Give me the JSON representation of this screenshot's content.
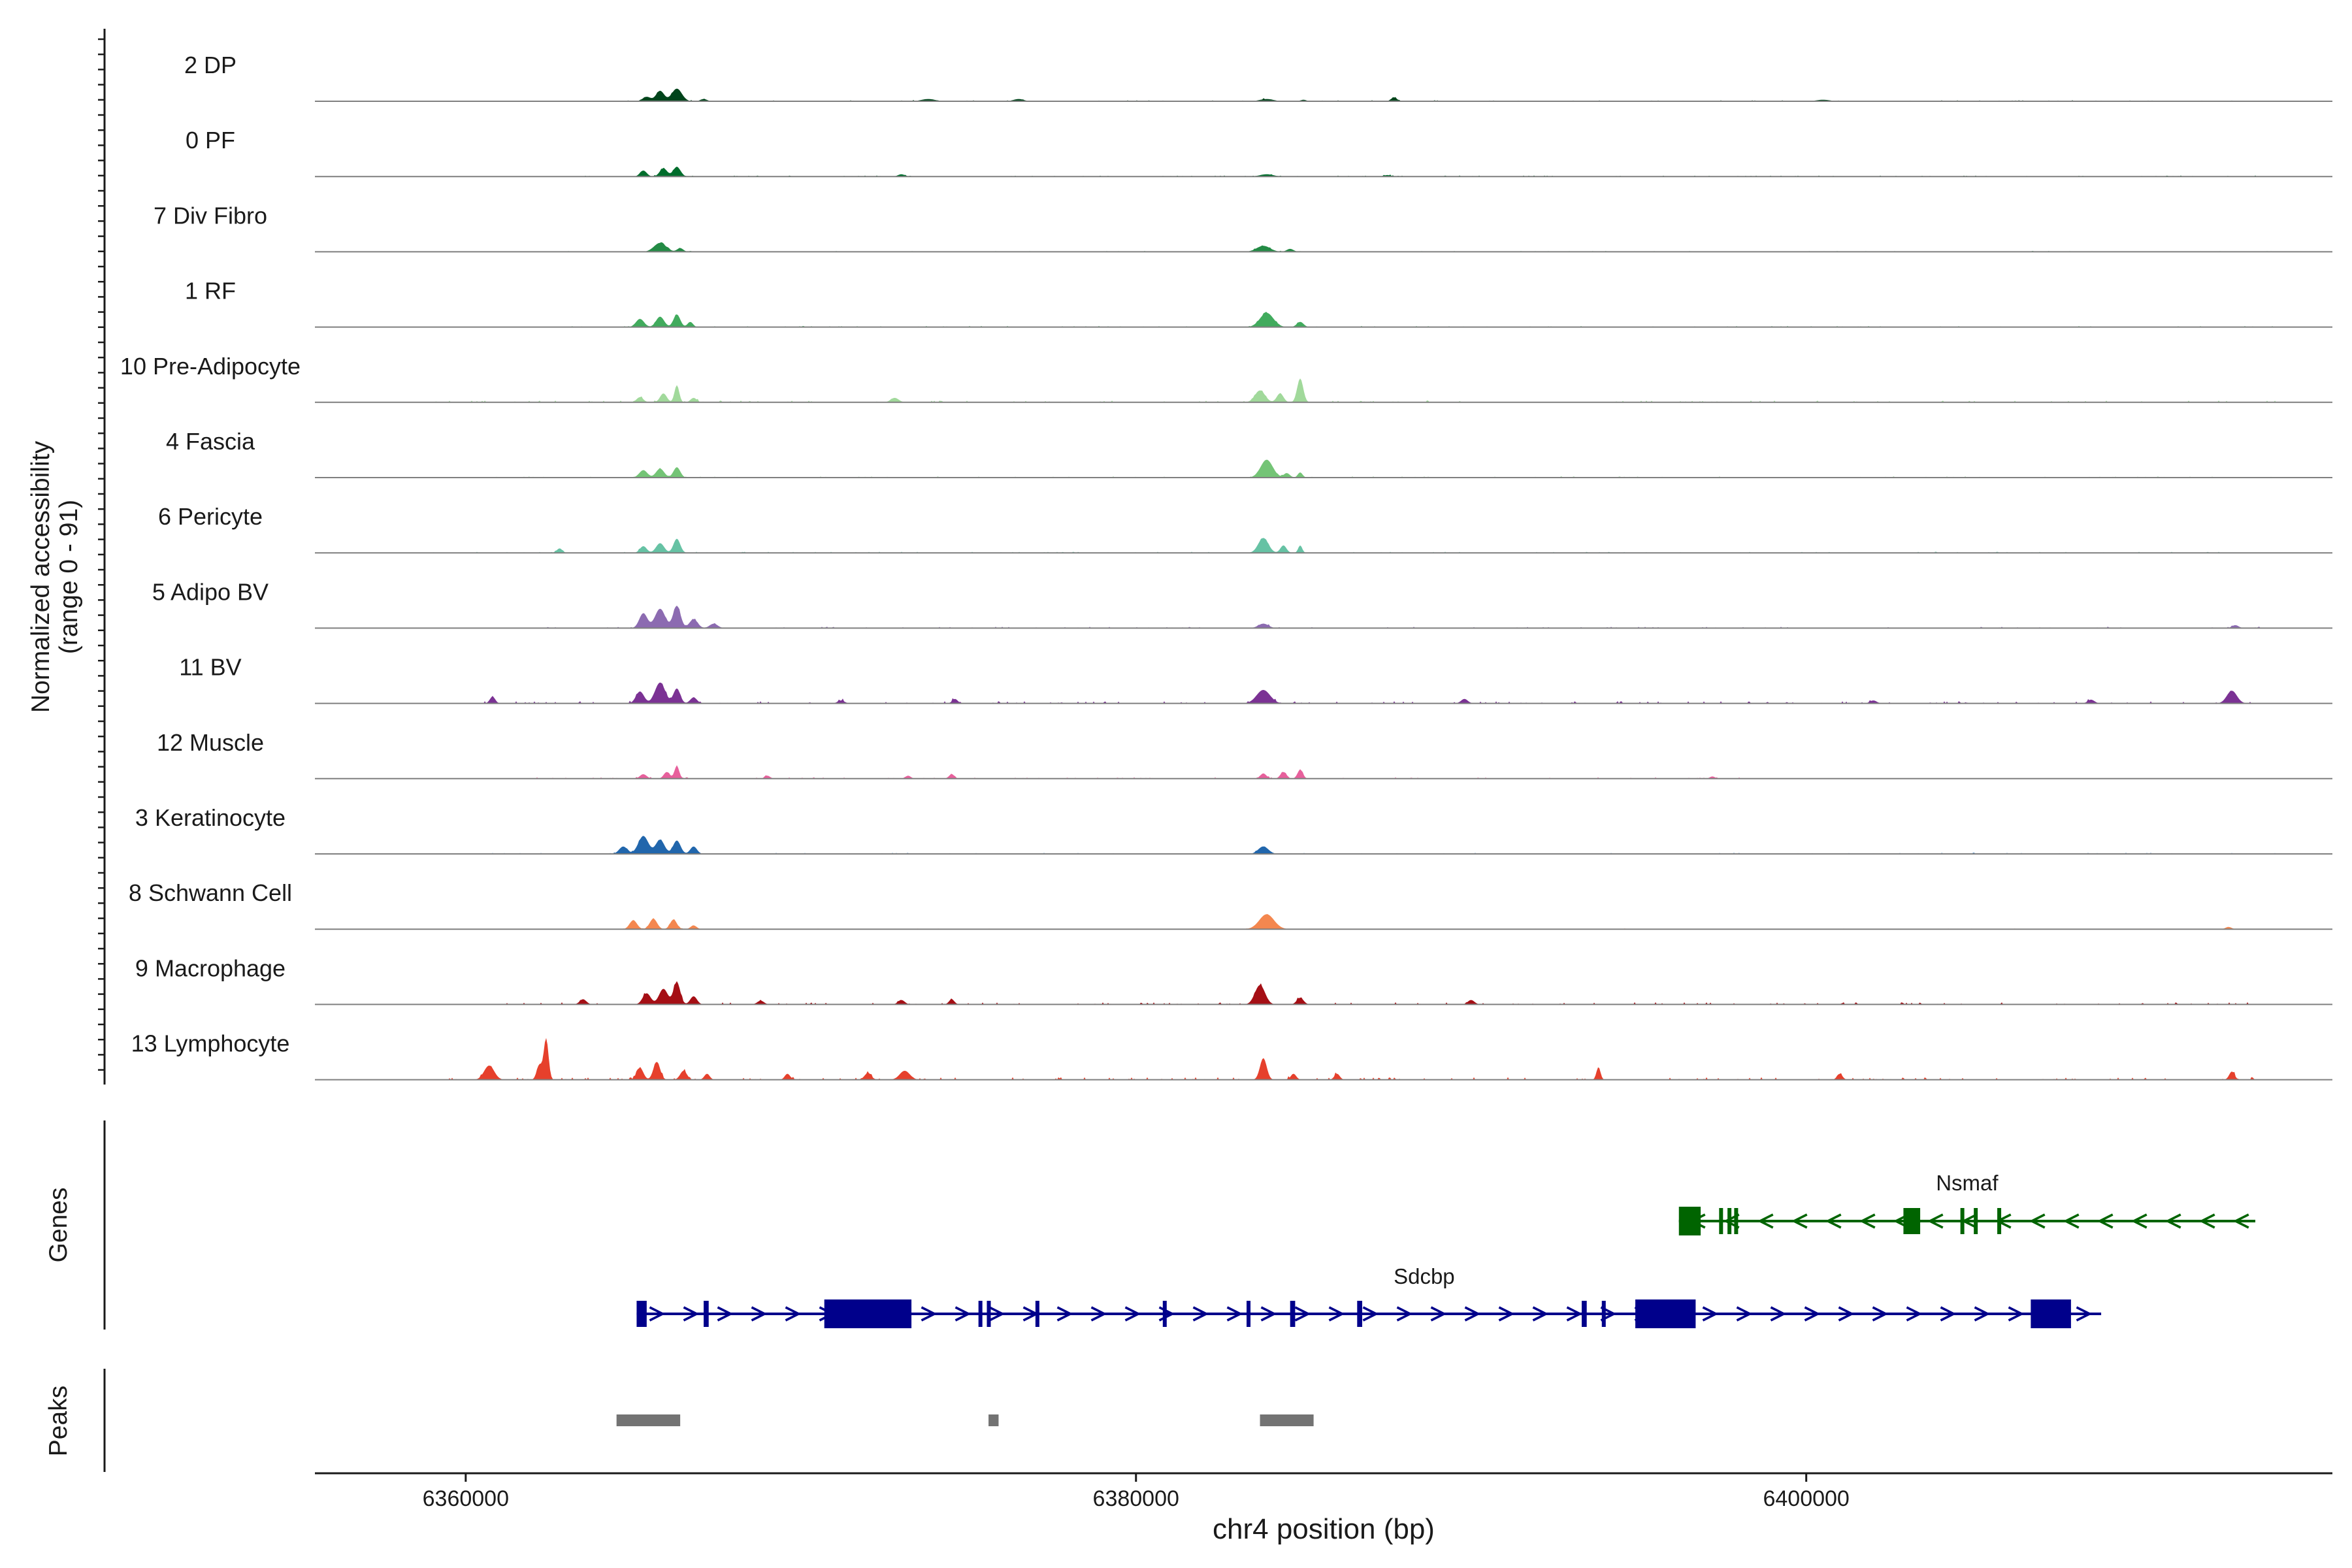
{
  "chart_data": {
    "type": "area",
    "chromosome": "chr4",
    "xlabel": "chr4 position (bp)",
    "xlim": [
      6355500,
      6415700
    ],
    "xticks": [
      6360000,
      6380000,
      6400000
    ],
    "ylabel_line1": "Normalized accessibility",
    "ylabel_line2": "(range 0 - 91)",
    "ylim": [
      0,
      91
    ],
    "panel_labels": {
      "genes": "Genes",
      "peaks": "Peaks"
    },
    "tracks": [
      {
        "name": "2 DP",
        "color": "#00441b",
        "peaks": [
          [
            6365800,
            120,
            14
          ],
          [
            6366300,
            150,
            17
          ],
          [
            6365400,
            120,
            6
          ],
          [
            6367100,
            100,
            3
          ],
          [
            6373800,
            200,
            3
          ],
          [
            6376500,
            150,
            3
          ],
          [
            6383900,
            200,
            3
          ],
          [
            6385000,
            90,
            2
          ],
          [
            6387700,
            90,
            5
          ],
          [
            6400500,
            200,
            2
          ]
        ],
        "noise": [
          [
            6363000,
            6414000,
            1.5
          ]
        ]
      },
      {
        "name": "0 PF",
        "color": "#006d2c",
        "peaks": [
          [
            6365300,
            100,
            8
          ],
          [
            6365900,
            110,
            11
          ],
          [
            6366300,
            110,
            13
          ],
          [
            6373000,
            100,
            3
          ],
          [
            6383900,
            200,
            3
          ],
          [
            6387500,
            100,
            2
          ]
        ],
        "noise": [
          [
            6363000,
            6414000,
            1.5
          ]
        ]
      },
      {
        "name": "7 Div Fibro",
        "color": "#238b45",
        "peaks": [
          [
            6365800,
            180,
            12
          ],
          [
            6366400,
            90,
            5
          ],
          [
            6383800,
            200,
            8
          ],
          [
            6384600,
            100,
            4
          ]
        ],
        "noise": [
          [
            6363000,
            6414000,
            1.2
          ]
        ]
      },
      {
        "name": "1 RF",
        "color": "#41ab5d",
        "peaks": [
          [
            6365200,
            120,
            11
          ],
          [
            6365800,
            120,
            14
          ],
          [
            6366300,
            100,
            17
          ],
          [
            6366700,
            80,
            7
          ],
          [
            6383900,
            200,
            19
          ],
          [
            6384900,
            100,
            7
          ]
        ],
        "noise": [
          [
            6363000,
            6414000,
            1.5
          ]
        ]
      },
      {
        "name": "10 Pre-Adipocyte",
        "color": "#a1d99b",
        "peaks": [
          [
            6365200,
            100,
            7
          ],
          [
            6365900,
            100,
            12
          ],
          [
            6366300,
            70,
            23
          ],
          [
            6366800,
            90,
            6
          ],
          [
            6372800,
            120,
            6
          ],
          [
            6383700,
            150,
            16
          ],
          [
            6384300,
            100,
            12
          ],
          [
            6384900,
            90,
            32
          ]
        ],
        "noise": [
          [
            6359000,
            6414500,
            2.5
          ]
        ]
      },
      {
        "name": "4 Fascia",
        "color": "#74c476",
        "peaks": [
          [
            6365300,
            120,
            10
          ],
          [
            6365800,
            120,
            12
          ],
          [
            6366300,
            100,
            14
          ],
          [
            6383900,
            180,
            24
          ],
          [
            6384500,
            90,
            6
          ],
          [
            6384900,
            70,
            7
          ]
        ],
        "noise": [
          [
            6360000,
            6414000,
            1.5
          ]
        ]
      },
      {
        "name": "6 Pericyte",
        "color": "#66c2a4",
        "peaks": [
          [
            6362800,
            80,
            6
          ],
          [
            6365300,
            100,
            9
          ],
          [
            6365800,
            120,
            13
          ],
          [
            6366300,
            100,
            19
          ],
          [
            6383800,
            150,
            20
          ],
          [
            6384400,
            90,
            10
          ],
          [
            6384900,
            60,
            10
          ]
        ],
        "noise": [
          [
            6359000,
            6413000,
            1.5
          ]
        ]
      },
      {
        "name": "5 Adipo BV",
        "color": "#8c6bb1",
        "peaks": [
          [
            6365300,
            120,
            20
          ],
          [
            6365800,
            150,
            26
          ],
          [
            6366300,
            110,
            30
          ],
          [
            6366800,
            120,
            12
          ],
          [
            6367400,
            120,
            6
          ],
          [
            6383800,
            150,
            6
          ],
          [
            6412800,
            100,
            4
          ]
        ],
        "noise": [
          [
            6362000,
            6414000,
            2.0
          ]
        ]
      },
      {
        "name": "11 BV",
        "color": "#7b3294",
        "peaks": [
          [
            6360800,
            80,
            9
          ],
          [
            6365200,
            120,
            16
          ],
          [
            6365800,
            150,
            28
          ],
          [
            6366300,
            100,
            20
          ],
          [
            6366800,
            100,
            8
          ],
          [
            6371200,
            100,
            4
          ],
          [
            6374600,
            80,
            6
          ],
          [
            6383800,
            200,
            18
          ],
          [
            6389800,
            100,
            6
          ],
          [
            6402000,
            100,
            4
          ],
          [
            6408500,
            100,
            5
          ],
          [
            6412700,
            150,
            17
          ]
        ],
        "noise": [
          [
            6360500,
            6414000,
            3.0
          ]
        ]
      },
      {
        "name": "12 Muscle",
        "color": "#e7609c",
        "peaks": [
          [
            6365300,
            100,
            6
          ],
          [
            6366000,
            90,
            9
          ],
          [
            6366300,
            70,
            17
          ],
          [
            6369000,
            80,
            4
          ],
          [
            6373200,
            80,
            4
          ],
          [
            6374500,
            80,
            6
          ],
          [
            6383800,
            90,
            7
          ],
          [
            6384400,
            90,
            9
          ],
          [
            6384900,
            80,
            12
          ],
          [
            6397200,
            80,
            3
          ]
        ],
        "noise": [
          [
            6362000,
            6398000,
            1.8
          ]
        ]
      },
      {
        "name": "3 Keratinocyte",
        "color": "#2166ac",
        "peaks": [
          [
            6364700,
            120,
            10
          ],
          [
            6365300,
            150,
            24
          ],
          [
            6365800,
            130,
            19
          ],
          [
            6366300,
            110,
            18
          ],
          [
            6366800,
            100,
            10
          ],
          [
            6383800,
            150,
            10
          ]
        ],
        "noise": [
          [
            6360000,
            6414000,
            1.5
          ]
        ]
      },
      {
        "name": "8 Schwann Cell",
        "color": "#f4874f",
        "peaks": [
          [
            6365000,
            110,
            12
          ],
          [
            6365600,
            110,
            14
          ],
          [
            6366200,
            100,
            13
          ],
          [
            6366800,
            90,
            5
          ],
          [
            6383900,
            220,
            20
          ],
          [
            6412600,
            90,
            3
          ]
        ],
        "noise": [
          [
            6360000,
            6413000,
            0.8
          ]
        ]
      },
      {
        "name": "9 Macrophage",
        "color": "#a50f15",
        "peaks": [
          [
            6363500,
            100,
            7
          ],
          [
            6365400,
            120,
            15
          ],
          [
            6365900,
            130,
            21
          ],
          [
            6366300,
            100,
            30
          ],
          [
            6366800,
            100,
            11
          ],
          [
            6368800,
            100,
            5
          ],
          [
            6373000,
            100,
            6
          ],
          [
            6374500,
            80,
            7
          ],
          [
            6383700,
            150,
            26
          ],
          [
            6384900,
            100,
            9
          ],
          [
            6390000,
            100,
            6
          ]
        ],
        "noise": [
          [
            6361000,
            6413500,
            3.0
          ]
        ]
      },
      {
        "name": "13 Lymphocyte",
        "color": "#e6402c",
        "peaks": [
          [
            6360700,
            150,
            19
          ],
          [
            6362400,
            70,
            55
          ],
          [
            6362200,
            80,
            20
          ],
          [
            6365200,
            100,
            16
          ],
          [
            6365700,
            100,
            24
          ],
          [
            6366500,
            100,
            12
          ],
          [
            6367200,
            80,
            8
          ],
          [
            6369600,
            80,
            8
          ],
          [
            6372000,
            100,
            9
          ],
          [
            6373100,
            150,
            12
          ],
          [
            6383800,
            100,
            29
          ],
          [
            6384700,
            80,
            8
          ],
          [
            6386000,
            80,
            8
          ],
          [
            6393800,
            60,
            17
          ],
          [
            6401000,
            80,
            8
          ],
          [
            6412700,
            80,
            11
          ]
        ],
        "noise": [
          [
            6359500,
            6413500,
            3.5
          ]
        ]
      }
    ],
    "genes": [
      {
        "name": "Nsmaf",
        "strand": "-",
        "color": "#006400",
        "start": 6396200,
        "end": 6413400,
        "exons": [
          [
            6396200,
            6396850
          ],
          [
            6397400,
            6397500
          ],
          [
            6397650,
            6397750
          ],
          [
            6397850,
            6397950
          ],
          [
            6402900,
            6403400
          ],
          [
            6404600,
            6404700
          ],
          [
            6405000,
            6405100
          ],
          [
            6405700,
            6405800
          ]
        ]
      },
      {
        "name": "Sdcbp",
        "strand": "+",
        "color": "#00008b",
        "start": 6365100,
        "end": 6408800,
        "exons": [
          [
            6365100,
            6365400
          ],
          [
            6367100,
            6367250
          ],
          [
            6370700,
            6373300
          ],
          [
            6375300,
            6375400
          ],
          [
            6375550,
            6375650
          ],
          [
            6377000,
            6377100
          ],
          [
            6380800,
            6380900
          ],
          [
            6383300,
            6383400
          ],
          [
            6384600,
            6384750
          ],
          [
            6386600,
            6386750
          ],
          [
            6393300,
            6393450
          ],
          [
            6393900,
            6394000
          ],
          [
            6394900,
            6396700
          ],
          [
            6406700,
            6407900
          ]
        ]
      }
    ],
    "peaks_track": [
      [
        6364500,
        6366400
      ],
      [
        6375600,
        6375900
      ],
      [
        6383700,
        6385300
      ]
    ]
  }
}
